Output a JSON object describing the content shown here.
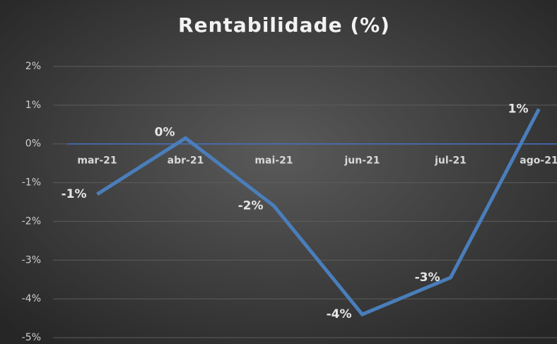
{
  "chart_data": {
    "type": "line",
    "title": "Rentabilidade (%)",
    "categories": [
      "mar-21",
      "abr-21",
      "mai-21",
      "jun-21",
      "jul-21",
      "ago-21"
    ],
    "series": [
      {
        "name": "Rentabilidade",
        "color": "#4a7ebb",
        "values": [
          -1.3,
          0.15,
          -1.6,
          -4.4,
          -3.45,
          0.9
        ],
        "value_labels": [
          "-1%",
          "0%",
          "-2%",
          "-4%",
          "-3%",
          "1%"
        ]
      }
    ],
    "ylim": [
      -5,
      2
    ],
    "yticks": [
      {
        "value": 2,
        "label": "2%"
      },
      {
        "value": 1,
        "label": "1%"
      },
      {
        "value": 0,
        "label": "0%"
      },
      {
        "value": -1,
        "label": "-1%"
      },
      {
        "value": -2,
        "label": "-2%"
      },
      {
        "value": -3,
        "label": "-3%"
      },
      {
        "value": -4,
        "label": "-4%"
      },
      {
        "value": -5,
        "label": "-5%"
      }
    ],
    "grid": true
  }
}
